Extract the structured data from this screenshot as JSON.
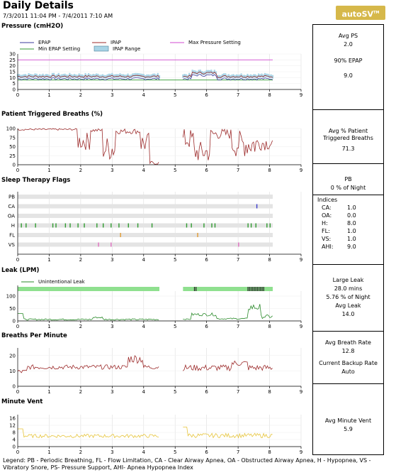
{
  "header": {
    "title": "Daily Details",
    "date_range": "7/3/2011 11:04 PM - 7/4/2011 7:10 AM",
    "brand": "autoSV",
    "brand_mark": "TM"
  },
  "colors": {
    "epap": "#3b3b9c",
    "ipap": "#9c2a2a",
    "max_pressure": "#d04ad0",
    "min_epap": "#2f9a2f",
    "ipap_range": "#a9d4e6",
    "triggered": "#9c2a2a",
    "leak": "#2a8a2a",
    "leak_bar": "#8fe08f",
    "breaths": "#9c2a2a",
    "minvent": "#e6c43a"
  },
  "sections": {
    "pressure": {
      "title": "Pressure (cmH2O)",
      "legend": {
        "epap": "EPAP",
        "ipap": "IPAP",
        "max": "Max Pressure Setting",
        "min_epap": "Min EPAP Setting",
        "ipap_range": "IPAP Range"
      },
      "y_ticks": [
        "30",
        "25",
        "20",
        "15",
        "10",
        "5",
        "0"
      ]
    },
    "triggered": {
      "title": "Patient Triggered Breaths (%)",
      "y_ticks": [
        "100",
        "75",
        "50",
        "25",
        "0"
      ]
    },
    "flags": {
      "title": "Sleep Therapy Flags",
      "rows": [
        "PB",
        "CA",
        "OA",
        "H",
        "FL",
        "VS"
      ]
    },
    "leak": {
      "title": "Leak (LPM)",
      "legend": "Unintentional Leak",
      "y_ticks": [
        "100",
        "50",
        "0"
      ]
    },
    "breaths": {
      "title": "Breaths Per Minute",
      "y_ticks": [
        "20",
        "10",
        "0"
      ]
    },
    "minvent": {
      "title": "Minute Vent",
      "y_ticks": [
        "16",
        "12",
        "8",
        "4",
        "0"
      ]
    }
  },
  "x_ticks": [
    "0",
    "1",
    "2",
    "3",
    "4",
    "5",
    "6",
    "7",
    "8",
    "9"
  ],
  "side": {
    "ps": {
      "label": "Avg PS",
      "value": "2.0",
      "label2": "90% EPAP",
      "value2": "9.0"
    },
    "trig": {
      "label1": "Avg % Patient",
      "label2": "Triggered Breaths",
      "value": "71.3"
    },
    "pb": {
      "label": "PB",
      "value": "0 % of Night"
    },
    "indices": {
      "title": "Indices",
      "rows": [
        {
          "k": "CA:",
          "v": "1.0"
        },
        {
          "k": "OA:",
          "v": "0.0"
        },
        {
          "k": "H:",
          "v": "8.0"
        },
        {
          "k": "FL:",
          "v": "1.0"
        },
        {
          "k": "VS:",
          "v": "1.0"
        },
        {
          "k": "AHI:",
          "v": "9.0"
        }
      ]
    },
    "leak": {
      "label": "Large Leak",
      "mins": "28.0 mins",
      "pct": "5.76 % of Night",
      "avg_label": "Avg Leak",
      "avg": "14.0"
    },
    "breath": {
      "label": "Avg Breath Rate",
      "value": "12.8",
      "backup_label": "Current Backup Rate",
      "backup": "Auto"
    },
    "minvent": {
      "label": "Avg Minute Vent",
      "value": "5.9"
    }
  },
  "footer": {
    "legend": "Legend: PB - Periodic Breathing, FL - Flow Limitation, CA - Clear Airway Apnea, OA - Obstructed Airway Apnea, H - Hypopnea, VS - Vibratory Snore, PS- Pressure Support, AHI- Apnea Hypopnea Index"
  }
}
